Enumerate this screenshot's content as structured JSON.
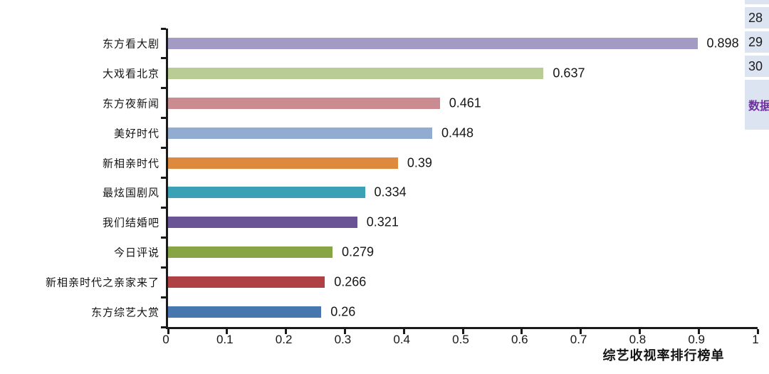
{
  "chart_data": {
    "type": "bar",
    "orientation": "horizontal",
    "title": "",
    "xlabel": "综艺收视率排行榜单",
    "ylabel": "",
    "xlim": [
      0,
      1
    ],
    "grid": false,
    "legend": false,
    "x_ticks": [
      "0",
      "0.1",
      "0.2",
      "0.3",
      "0.4",
      "0.5",
      "0.6",
      "0.7",
      "0.8",
      "0.9",
      "1"
    ],
    "categories": [
      "东方看大剧",
      "大戏看北京",
      "东方夜新闻",
      "美好时代",
      "新相亲时代",
      "最炫国剧风",
      "我们结婚吧",
      "今日评说",
      "新相亲时代之亲家来了",
      "东方综艺大赏"
    ],
    "values": [
      0.898,
      0.637,
      0.461,
      0.448,
      0.39,
      0.334,
      0.321,
      0.279,
      0.266,
      0.26
    ],
    "value_labels": [
      "0.898",
      "0.637",
      "0.461",
      "0.448",
      "0.39",
      "0.334",
      "0.321",
      "0.279",
      "0.266",
      "0.26"
    ],
    "bar_colors": [
      "#a39bc4",
      "#b9cc95",
      "#cb8c91",
      "#92abd0",
      "#dd8a3e",
      "#3ba1b5",
      "#6a5495",
      "#88a545",
      "#af4144",
      "#4677af"
    ],
    "axis_color": "#1a1a1a"
  },
  "side_panel": {
    "cells": [
      "28",
      "29",
      "30"
    ],
    "header_cell": "数据",
    "cell_bg": "#dce3f1",
    "number_text_color": "#1c1c1c",
    "header_text_color": "#7030a0"
  }
}
